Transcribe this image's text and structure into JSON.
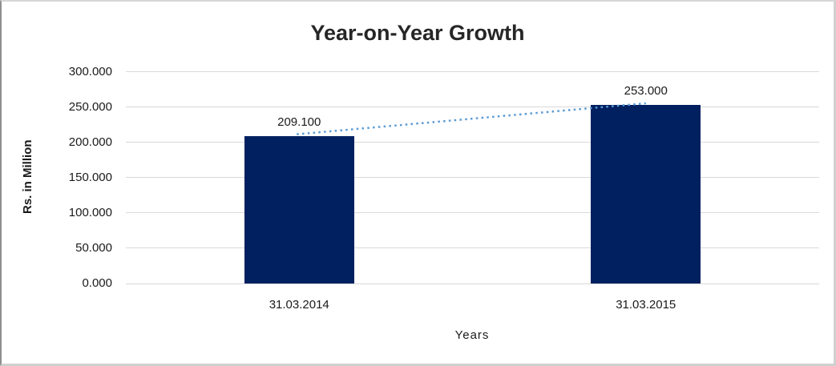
{
  "chart_data": {
    "type": "bar",
    "title": "Year-on-Year Growth",
    "xlabel": "Years",
    "ylabel": "Rs. in Million",
    "categories": [
      "31.03.2014",
      "31.03.2015"
    ],
    "values": [
      209.1,
      253.0
    ],
    "data_labels": [
      "209.100",
      "253.000"
    ],
    "ytick_labels": [
      "300.000",
      "250.000",
      "200.000",
      "150.000",
      "100.000",
      "50.000",
      "0.000"
    ],
    "ytick_values": [
      300,
      250,
      200,
      150,
      100,
      50,
      0
    ],
    "ylim": [
      0,
      300
    ],
    "grid": "horizontal",
    "legend": "none",
    "bar_color": "#002060",
    "gridline_color": "#d9d9d9",
    "trendline": {
      "style": "dotted",
      "color": "#5b9bd5",
      "connects": [
        "209.100",
        "253.000"
      ]
    }
  }
}
